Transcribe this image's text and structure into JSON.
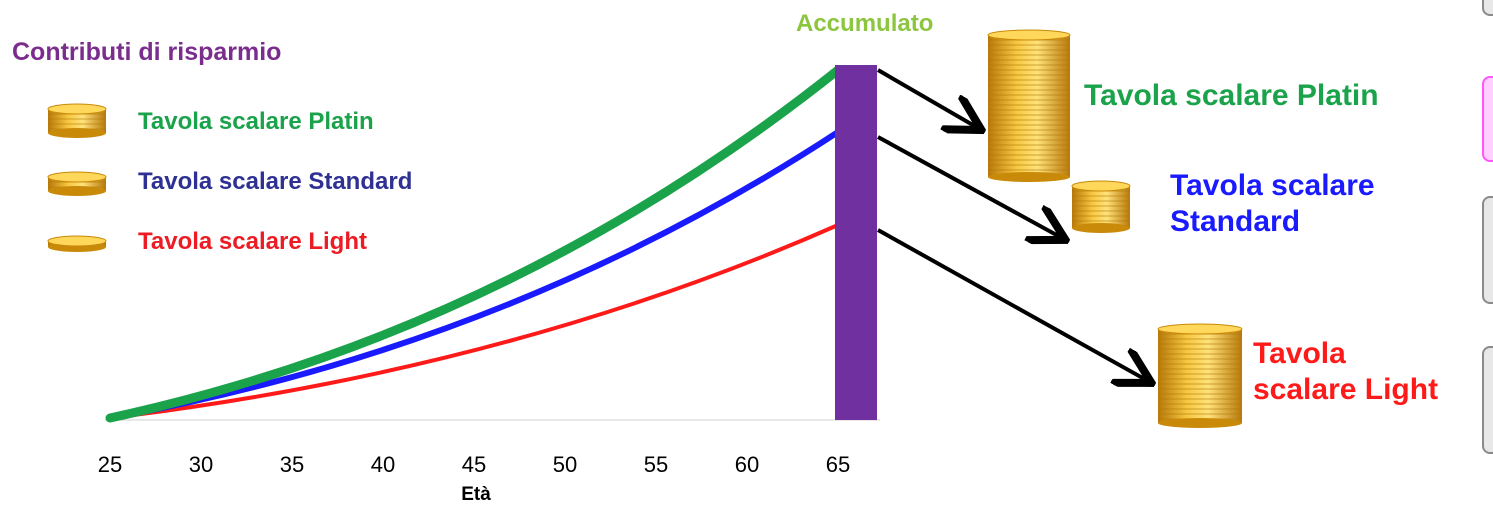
{
  "chart_data": {
    "type": "line",
    "xlabel": "Età",
    "x_ticks": [
      "25",
      "30",
      "35",
      "40",
      "45",
      "50",
      "55",
      "60",
      "65"
    ],
    "xlim": [
      25,
      65
    ],
    "series": [
      {
        "name": "Tavola scalare Platin",
        "color": "#1aa34a",
        "start_age": 25,
        "end_age": 65,
        "growth": "highest"
      },
      {
        "name": "Tavola scalare Standard",
        "color": "#1a1aff",
        "start_age": 25,
        "end_age": 65,
        "growth": "middle"
      },
      {
        "name": "Tavola scalare Light",
        "color": "#ff1a1a",
        "start_age": 25,
        "end_age": 65,
        "growth": "lowest"
      }
    ],
    "accumulation_bar": {
      "label": "Accumulato",
      "age": 65,
      "color": "#7030a0"
    }
  },
  "legend": {
    "title": "Contributi di risparmio",
    "items": [
      {
        "label": "Tavola scalare Platin",
        "color": "#1aa34a"
      },
      {
        "label": "Tavola scalare Standard",
        "color": "#2e3192"
      },
      {
        "label": "Tavola scalare Light",
        "color": "#ed1c24"
      }
    ]
  },
  "outcomes": {
    "platin": {
      "label": "Tavola scalare Platin",
      "color": "#1aa34a"
    },
    "standard": {
      "line1": "Tavola scalare",
      "line2": "Standard",
      "color": "#1a1aff"
    },
    "light": {
      "line1": "Tavola",
      "line2": "scalare Light",
      "color": "#ff1a1a"
    }
  },
  "colors": {
    "coin_gold": "#f2b51c",
    "coin_dark": "#c98a0a",
    "accent_purple": "#7b2d8e"
  }
}
